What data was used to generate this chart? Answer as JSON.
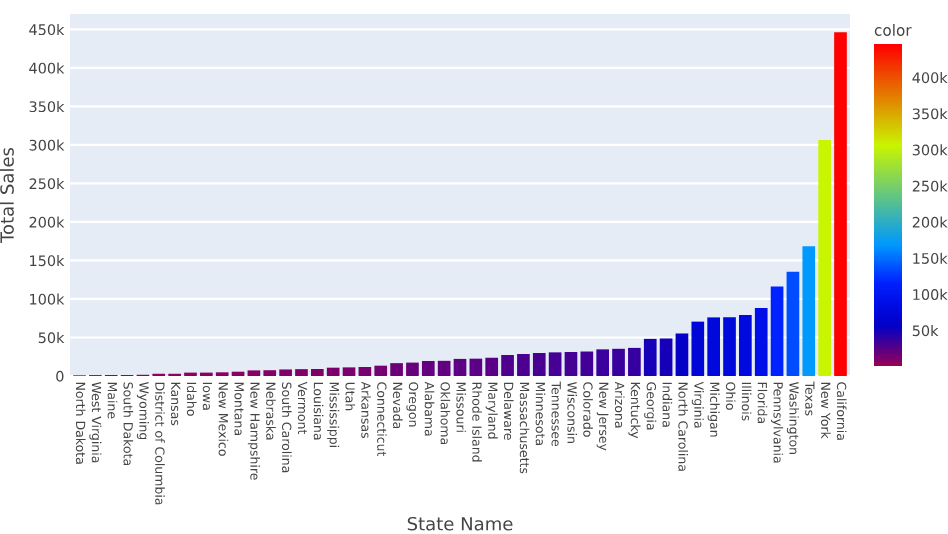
{
  "chart_data": {
    "type": "bar",
    "xlabel": "State Name",
    "ylabel": "Total Sales",
    "clabel": "color",
    "categories": [
      "North Dakota",
      "West Virginia",
      "Maine",
      "South Dakota",
      "Wyoming",
      "District of Columbia",
      "Kansas",
      "Idaho",
      "Iowa",
      "New Mexico",
      "Montana",
      "New Hampshire",
      "Nebraska",
      "South Carolina",
      "Vermont",
      "Louisiana",
      "Mississippi",
      "Utah",
      "Arkansas",
      "Connecticut",
      "Nevada",
      "Oregon",
      "Alabama",
      "Oklahoma",
      "Missouri",
      "Rhode Island",
      "Maryland",
      "Delaware",
      "Massachusetts",
      "Minnesota",
      "Tennessee",
      "Wisconsin",
      "Colorado",
      "New Jersey",
      "Arizona",
      "Kentucky",
      "Georgia",
      "Indiana",
      "North Carolina",
      "Virginia",
      "Michigan",
      "Ohio",
      "Illinois",
      "Florida",
      "Pennsylvania",
      "Washington",
      "Texas",
      "New York",
      "California"
    ],
    "values": [
      900,
      1200,
      1300,
      1300,
      1600,
      2900,
      2900,
      4400,
      4400,
      4800,
      5600,
      7300,
      7500,
      8500,
      8900,
      9100,
      10800,
      11200,
      11700,
      13400,
      16700,
      17400,
      19500,
      19700,
      22200,
      22500,
      23700,
      27300,
      28600,
      29900,
      30700,
      31200,
      31800,
      34600,
      35300,
      36500,
      48200,
      48700,
      55200,
      70600,
      76100,
      76300,
      79200,
      88400,
      116300,
      135200,
      168600,
      306400,
      446300
    ],
    "colors": [
      "#96005a",
      "#95005b",
      "#95005b",
      "#95005b",
      "#94005b",
      "#91005e",
      "#91005e",
      "#8d0061",
      "#8d0061",
      "#8c0062",
      "#890063",
      "#850067",
      "#840067",
      "#820069",
      "#80006a",
      "#80006a",
      "#7b006d",
      "#7a006e",
      "#79006f",
      "#740073",
      "#6b0079",
      "#69007b",
      "#64007f",
      "#63007f",
      "#5d0084",
      "#5c0085",
      "#590087",
      "#4f008e",
      "#4b0091",
      "#480093",
      "#460095",
      "#450096",
      "#430097",
      "#3b009d",
      "#39009e",
      "#3600a0",
      "#1700b8",
      "#1500b8",
      "#0400c5",
      "#0006d6",
      "#0009db",
      "#0009dc",
      "#000ade",
      "#000ee7",
      "#0022ff",
      "#004dff",
      "#0099fe",
      "#caf500",
      "#ff0000"
    ],
    "ylim": [
      0,
      470000
    ],
    "yticks": [
      0,
      {
        "value": 50000,
        "label": "50k"
      },
      {
        "value": 100000,
        "label": "100k"
      },
      {
        "value": 150000,
        "label": "150k"
      },
      {
        "value": 200000,
        "label": "200k"
      },
      {
        "value": 250000,
        "label": "250k"
      },
      {
        "value": 300000,
        "label": "300k"
      },
      {
        "value": 350000,
        "label": "350k"
      },
      {
        "value": 400000,
        "label": "400k"
      },
      {
        "value": 450000,
        "label": "450k"
      }
    ],
    "clim": [
      900,
      446300
    ],
    "cticks": [
      {
        "value": 50000,
        "label": "50k"
      },
      {
        "value": 100000,
        "label": "100k"
      },
      {
        "value": 150000,
        "label": "150k"
      },
      {
        "value": 200000,
        "label": "200k"
      },
      {
        "value": 250000,
        "label": "250k"
      },
      {
        "value": 300000,
        "label": "300k"
      },
      {
        "value": 350000,
        "label": "350k"
      },
      {
        "value": 400000,
        "label": "400k"
      }
    ],
    "grid": "y"
  }
}
